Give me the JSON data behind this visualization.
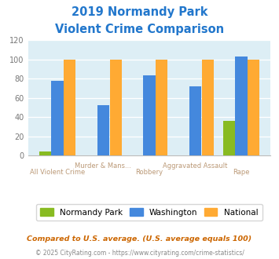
{
  "title_line1": "2019 Normandy Park",
  "title_line2": "Violent Crime Comparison",
  "title_color": "#2277cc",
  "categories": [
    "All Violent Crime",
    "Murder & Mans...",
    "Robbery",
    "Aggravated Assault",
    "Rape"
  ],
  "normandy_park": [
    4,
    0,
    0,
    0,
    36
  ],
  "washington": [
    78,
    52,
    83,
    72,
    103
  ],
  "national": [
    100,
    100,
    100,
    100,
    100
  ],
  "np_color": "#88bb22",
  "wa_color": "#4488dd",
  "nat_color": "#ffaa33",
  "ylim": [
    0,
    120
  ],
  "yticks": [
    0,
    20,
    40,
    60,
    80,
    100,
    120
  ],
  "plot_bg": "#ddeef5",
  "legend_labels": [
    "Normandy Park",
    "Washington",
    "National"
  ],
  "footnote1": "Compared to U.S. average. (U.S. average equals 100)",
  "footnote2": "© 2025 CityRating.com - https://www.cityrating.com/crime-statistics/",
  "footnote1_color": "#cc6600",
  "footnote2_color": "#888888",
  "label_upper_color": "#bb9977",
  "label_lower_color": "#bb9977"
}
